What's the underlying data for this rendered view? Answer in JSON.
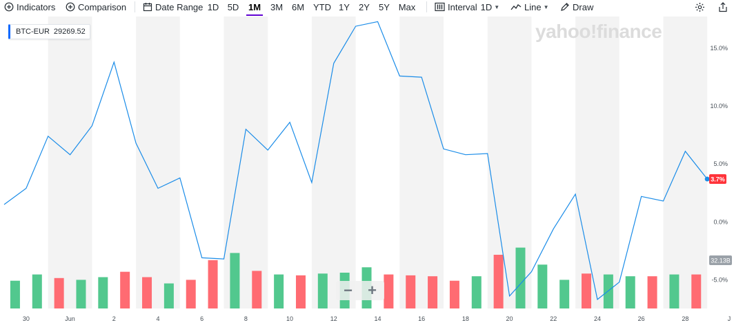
{
  "toolbar": {
    "indicators_label": "Indicators",
    "comparison_label": "Comparison",
    "date_range_label": "Date Range",
    "ranges": [
      "1D",
      "5D",
      "1M",
      "3M",
      "6M",
      "YTD",
      "1Y",
      "2Y",
      "5Y",
      "Max"
    ],
    "active_range": "1M",
    "interval_label": "Interval",
    "interval_value": "1D",
    "line_label": "Line",
    "draw_label": "Draw"
  },
  "watermark": "yahoo!finance",
  "ticker": {
    "symbol": "BTC-EUR",
    "value": "29269.52",
    "color": "#0f69ff"
  },
  "zoom": {
    "minus": "−",
    "plus": "+"
  },
  "colors": {
    "line": "#1a8ce8",
    "volume_up": "#52c88e",
    "volume_down": "#ff6b72",
    "band": "#f3f3f3",
    "current_badge": "#ff333a",
    "volume_badge": "#9aa1a8"
  },
  "chart_data": {
    "type": "line",
    "x_tick_labels": [
      "30",
      "Jun",
      "2",
      "4",
      "6",
      "8",
      "10",
      "12",
      "14",
      "16",
      "18",
      "20",
      "22",
      "24",
      "26",
      "28",
      "J"
    ],
    "y_tick_labels": [
      "15.0%",
      "10.0%",
      "5.0%",
      "0.0%",
      "-5.0%"
    ],
    "y_ticks": [
      15,
      10,
      5,
      0,
      -5
    ],
    "ylim": [
      -7.3,
      17.5
    ],
    "series": [
      {
        "x": [
          "May 29",
          "May 30",
          "May 31",
          "Jun 1",
          "Jun 2",
          "Jun 3",
          "Jun 4",
          "Jun 5",
          "Jun 6",
          "Jun 7",
          "Jun 8",
          "Jun 9",
          "Jun 10",
          "Jun 11",
          "Jun 12",
          "Jun 13",
          "Jun 14",
          "Jun 15",
          "Jun 16",
          "Jun 17",
          "Jun 18",
          "Jun 19",
          "Jun 20",
          "Jun 21",
          "Jun 22",
          "Jun 23",
          "Jun 24",
          "Jun 25",
          "Jun 26",
          "Jun 27",
          "Jun 28",
          "Jun 29",
          "Jun 30"
        ],
        "y": [
          1.5,
          2.9,
          7.4,
          5.8,
          8.3,
          13.8,
          6.8,
          2.9,
          3.8,
          -3.1,
          -3.2,
          8.0,
          6.2,
          8.6,
          3.4,
          13.7,
          16.9,
          17.3,
          12.6,
          12.5,
          6.3,
          5.8,
          5.9,
          -6.4,
          -4.3,
          -0.6,
          2.4,
          -6.7,
          -5.2,
          2.2,
          1.8,
          6.1,
          3.7
        ]
      }
    ],
    "current_value_label": "3.7%",
    "volume_label": "32.13B",
    "volume_series": {
      "values": [
        31,
        38,
        34,
        32,
        35,
        41,
        35,
        28,
        32,
        54,
        62,
        42,
        38,
        37,
        39,
        40,
        46,
        38,
        37,
        36,
        31,
        36,
        60,
        68,
        49,
        32,
        39,
        38,
        36,
        36,
        38,
        38
      ],
      "direction": [
        "up",
        "up",
        "down",
        "up",
        "up",
        "down",
        "down",
        "up",
        "down",
        "down",
        "up",
        "down",
        "up",
        "down",
        "up",
        "up",
        "up",
        "down",
        "down",
        "down",
        "down",
        "up",
        "down",
        "up",
        "up",
        "up",
        "down",
        "up",
        "up",
        "down",
        "up",
        "down"
      ]
    }
  }
}
